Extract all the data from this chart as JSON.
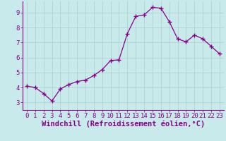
{
  "x": [
    0,
    1,
    2,
    3,
    4,
    5,
    6,
    7,
    8,
    9,
    10,
    11,
    12,
    13,
    14,
    15,
    16,
    17,
    18,
    19,
    20,
    21,
    22,
    23
  ],
  "y": [
    4.1,
    4.0,
    3.6,
    3.1,
    3.9,
    4.2,
    4.4,
    4.5,
    4.8,
    5.2,
    5.8,
    5.85,
    7.6,
    8.75,
    8.85,
    9.35,
    9.3,
    8.4,
    7.25,
    7.05,
    7.5,
    7.25,
    6.75,
    6.25
  ],
  "line_color": "#880088",
  "marker": "+",
  "marker_size": 4,
  "marker_lw": 1.0,
  "bg_color": "#c8eaea",
  "grid_color": "#aacccc",
  "tick_color": "#880088",
  "xlabel": "Windchill (Refroidissement éolien,°C)",
  "xlim": [
    -0.5,
    23.5
  ],
  "ylim": [
    2.5,
    9.75
  ],
  "yticks": [
    3,
    4,
    5,
    6,
    7,
    8,
    9
  ],
  "xticks": [
    0,
    1,
    2,
    3,
    4,
    5,
    6,
    7,
    8,
    9,
    10,
    11,
    12,
    13,
    14,
    15,
    16,
    17,
    18,
    19,
    20,
    21,
    22,
    23
  ],
  "tick_fontsize": 6.5,
  "xlabel_fontsize": 7.5,
  "line_width": 0.9
}
